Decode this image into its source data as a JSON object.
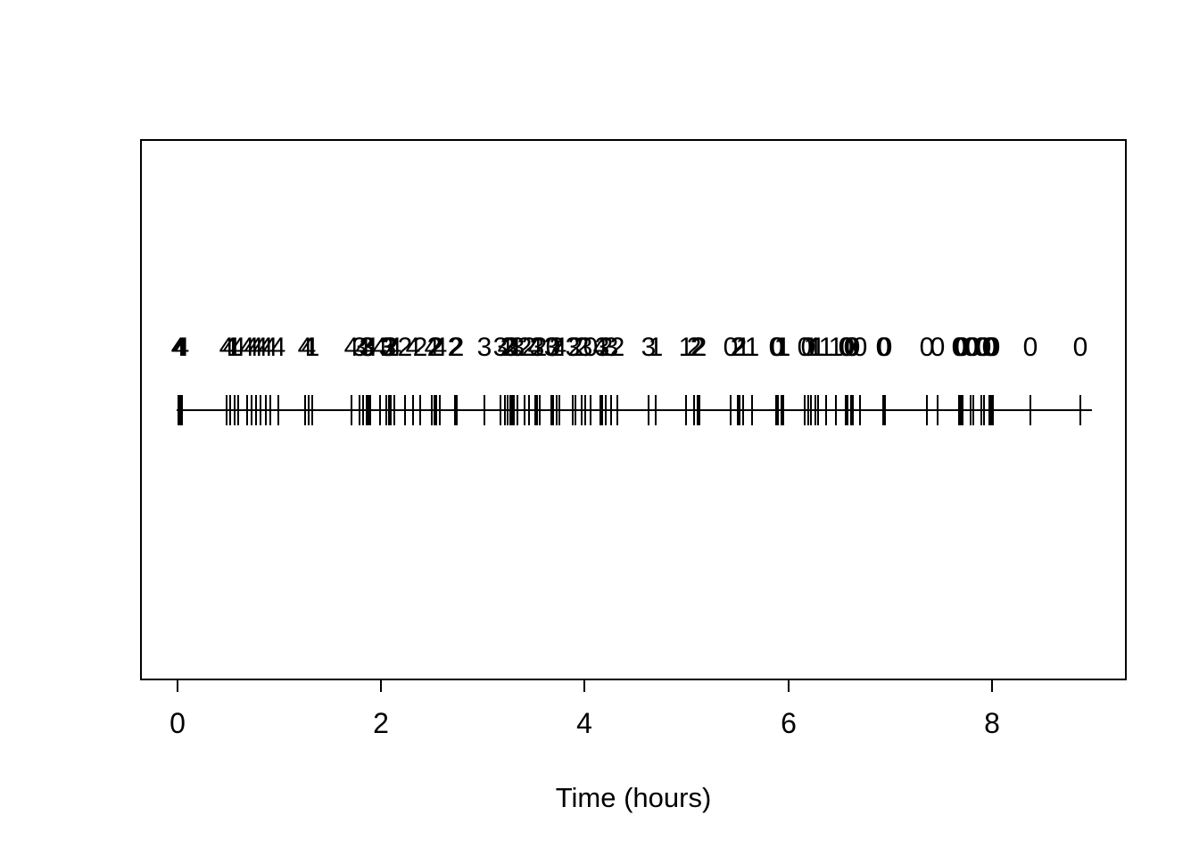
{
  "figure": {
    "background_color": "#ffffff",
    "foreground_color": "#000000",
    "xlabel": "Time (hours)"
  },
  "chart_data": {
    "type": "scatter",
    "subtype": "event-rug-timeline-with-count-labels",
    "title": "",
    "xlabel": "Time (hours)",
    "ylabel": "",
    "xlim": [
      -0.37,
      9.33
    ],
    "x_ticks": [
      0,
      2,
      4,
      6,
      8
    ],
    "grid": false,
    "legend": false,
    "line_start_t": -0.01,
    "line_end_t": 8.98,
    "events": [
      {
        "t": 0.01,
        "n": 4
      },
      {
        "t": 0.026,
        "n": 4
      },
      {
        "t": 0.044,
        "n": 4
      },
      {
        "t": 0.482,
        "n": 4
      },
      {
        "t": 0.517,
        "n": 4
      },
      {
        "t": 0.561,
        "n": 1
      },
      {
        "t": 0.596,
        "n": 4
      },
      {
        "t": 0.684,
        "n": 4
      },
      {
        "t": 0.727,
        "n": 4
      },
      {
        "t": 0.771,
        "n": 4
      },
      {
        "t": 0.815,
        "n": 4
      },
      {
        "t": 0.868,
        "n": 4
      },
      {
        "t": 0.911,
        "n": 4
      },
      {
        "t": 0.99,
        "n": 4
      },
      {
        "t": 1.253,
        "n": 4
      },
      {
        "t": 1.288,
        "n": 4
      },
      {
        "t": 1.323,
        "n": 1
      },
      {
        "t": 1.709,
        "n": 4
      },
      {
        "t": 1.788,
        "n": 3
      },
      {
        "t": 1.823,
        "n": 4
      },
      {
        "t": 1.858,
        "n": 3
      },
      {
        "t": 1.876,
        "n": 3
      },
      {
        "t": 1.893,
        "n": 4
      },
      {
        "t": 1.99,
        "n": 4
      },
      {
        "t": 2.051,
        "n": 3
      },
      {
        "t": 2.077,
        "n": 3
      },
      {
        "t": 2.095,
        "n": 2
      },
      {
        "t": 2.13,
        "n": 4
      },
      {
        "t": 2.235,
        "n": 2
      },
      {
        "t": 2.314,
        "n": 4
      },
      {
        "t": 2.384,
        "n": 2
      },
      {
        "t": 2.498,
        "n": 4
      },
      {
        "t": 2.524,
        "n": 2
      },
      {
        "t": 2.542,
        "n": 2
      },
      {
        "t": 2.577,
        "n": 4
      },
      {
        "t": 2.726,
        "n": 2
      },
      {
        "t": 2.743,
        "n": 2
      },
      {
        "t": 3.015,
        "n": 3
      },
      {
        "t": 3.173,
        "n": 3
      },
      {
        "t": 3.216,
        "n": 4
      },
      {
        "t": 3.243,
        "n": 2
      },
      {
        "t": 3.269,
        "n": 3
      },
      {
        "t": 3.287,
        "n": 2
      },
      {
        "t": 3.304,
        "n": 4
      },
      {
        "t": 3.339,
        "n": 3
      },
      {
        "t": 3.409,
        "n": 2
      },
      {
        "t": 3.453,
        "n": 2
      },
      {
        "t": 3.514,
        "n": 4
      },
      {
        "t": 3.532,
        "n": 3
      },
      {
        "t": 3.558,
        "n": 2
      },
      {
        "t": 3.672,
        "n": 3
      },
      {
        "t": 3.69,
        "n": 0
      },
      {
        "t": 3.725,
        "n": 2
      },
      {
        "t": 3.751,
        "n": 4
      },
      {
        "t": 3.883,
        "n": 3
      },
      {
        "t": 3.909,
        "n": 2
      },
      {
        "t": 3.97,
        "n": 2
      },
      {
        "t": 4.005,
        "n": 3
      },
      {
        "t": 4.058,
        "n": 0
      },
      {
        "t": 4.154,
        "n": 4
      },
      {
        "t": 4.172,
        "n": 3
      },
      {
        "t": 4.207,
        "n": 2
      },
      {
        "t": 4.259,
        "n": 3
      },
      {
        "t": 4.321,
        "n": 2
      },
      {
        "t": 4.628,
        "n": 3
      },
      {
        "t": 4.698,
        "n": 1
      },
      {
        "t": 4.996,
        "n": 1
      },
      {
        "t": 5.075,
        "n": 2
      },
      {
        "t": 5.11,
        "n": 2
      },
      {
        "t": 5.127,
        "n": 2
      },
      {
        "t": 5.434,
        "n": 0
      },
      {
        "t": 5.504,
        "n": 2
      },
      {
        "t": 5.522,
        "n": 2
      },
      {
        "t": 5.557,
        "n": 1
      },
      {
        "t": 5.644,
        "n": 1
      },
      {
        "t": 5.881,
        "n": 0
      },
      {
        "t": 5.898,
        "n": 0
      },
      {
        "t": 5.933,
        "n": 1
      },
      {
        "t": 5.951,
        "n": 1
      },
      {
        "t": 6.161,
        "n": 0
      },
      {
        "t": 6.196,
        "n": 0
      },
      {
        "t": 6.223,
        "n": 1
      },
      {
        "t": 6.266,
        "n": 1
      },
      {
        "t": 6.293,
        "n": 1
      },
      {
        "t": 6.372,
        "n": 1
      },
      {
        "t": 6.468,
        "n": 1
      },
      {
        "t": 6.565,
        "n": 0
      },
      {
        "t": 6.582,
        "n": 0
      },
      {
        "t": 6.617,
        "n": 0
      },
      {
        "t": 6.635,
        "n": 0
      },
      {
        "t": 6.705,
        "n": 0
      },
      {
        "t": 6.933,
        "n": 0
      },
      {
        "t": 6.951,
        "n": 0
      },
      {
        "t": 7.363,
        "n": 0
      },
      {
        "t": 7.468,
        "n": 0
      },
      {
        "t": 7.678,
        "n": 0
      },
      {
        "t": 7.696,
        "n": 0
      },
      {
        "t": 7.713,
        "n": 0
      },
      {
        "t": 7.792,
        "n": 0
      },
      {
        "t": 7.818,
        "n": 0
      },
      {
        "t": 7.897,
        "n": 0
      },
      {
        "t": 7.923,
        "n": 0
      },
      {
        "t": 7.976,
        "n": 0
      },
      {
        "t": 7.993,
        "n": 0
      },
      {
        "t": 8.011,
        "n": 0
      },
      {
        "t": 8.379,
        "n": 0
      },
      {
        "t": 8.87,
        "n": 0
      }
    ]
  }
}
